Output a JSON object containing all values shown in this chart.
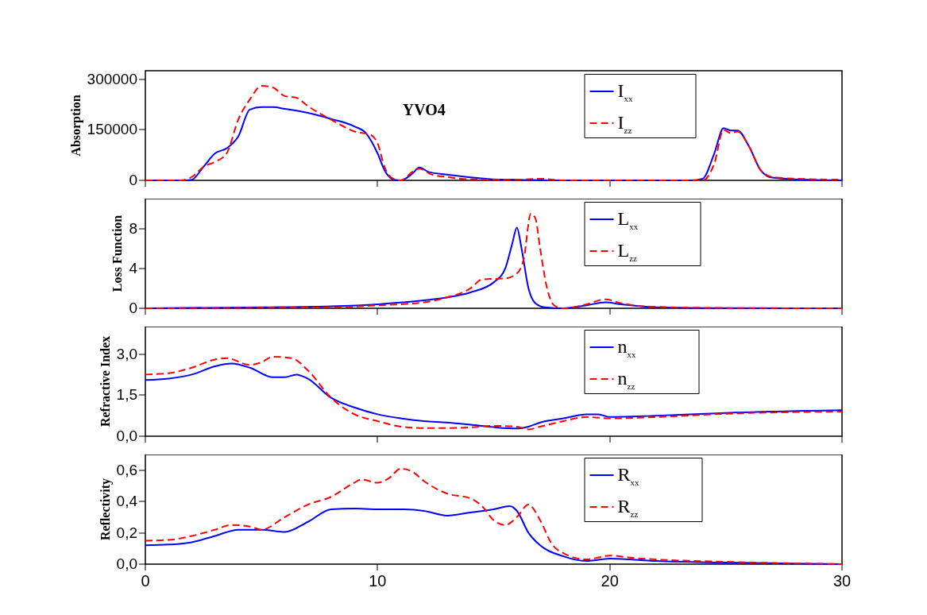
{
  "chart_data": [
    {
      "type": "line",
      "ylabel": "Absorption",
      "annotations": [
        "YVO4"
      ],
      "xlim": [
        0,
        30
      ],
      "xticks": [
        0,
        10,
        20,
        30
      ],
      "ylim": [
        0,
        325000
      ],
      "yticks": [
        0,
        150000,
        300000
      ],
      "tick_labels": "y",
      "legend": "top right",
      "x": [
        0,
        1.7,
        2,
        2.5,
        3,
        3.5,
        4,
        4.5,
        5,
        5.5,
        6,
        7,
        8,
        9,
        9.5,
        10,
        10.3,
        10.7,
        11,
        11.5,
        11.8,
        12.2,
        13,
        14,
        15,
        16,
        18,
        23.5,
        24,
        24.5,
        24.9,
        25.2,
        25.5,
        26,
        26.5,
        27,
        28,
        30
      ],
      "series": [
        {
          "name": "I$_{xx}$",
          "color": "#0000ff",
          "line_style": "solid",
          "values": [
            0,
            0,
            2000,
            40000,
            80000,
            95000,
            130000,
            210000,
            217000,
            217000,
            212000,
            200000,
            182000,
            160000,
            140000,
            80000,
            30000,
            2000,
            0,
            20000,
            38000,
            25000,
            17000,
            9000,
            3000,
            2000,
            0,
            0,
            5000,
            80000,
            155000,
            148000,
            148000,
            100000,
            30000,
            8000,
            3000,
            0
          ]
        },
        {
          "name": "I$_{zz}$",
          "color": "#ff0000",
          "line_style": "dashed",
          "x": [
            0,
            1.5,
            2,
            2.5,
            3,
            3.5,
            4,
            4.5,
            5,
            5.5,
            6,
            6.5,
            7,
            8,
            9,
            9.7,
            10,
            10.3,
            10.6,
            11,
            11.5,
            11.8,
            12.3,
            13,
            14,
            16,
            17,
            18,
            24,
            24.5,
            24.9,
            25.2,
            25.5,
            26,
            26.5,
            27,
            28,
            30
          ],
          "values": [
            0,
            0,
            10000,
            40000,
            55000,
            80000,
            180000,
            240000,
            280000,
            275000,
            250000,
            245000,
            220000,
            180000,
            145000,
            135000,
            110000,
            40000,
            8000,
            0,
            25000,
            35000,
            18000,
            10000,
            3000,
            2000,
            5000,
            0,
            0,
            50000,
            150000,
            140000,
            145000,
            100000,
            30000,
            10000,
            5000,
            2000
          ]
        }
      ]
    },
    {
      "type": "line",
      "ylabel": "Loss Function",
      "xlim": [
        0,
        30
      ],
      "xticks": [
        0,
        10,
        20,
        30
      ],
      "ylim": [
        0,
        11
      ],
      "yticks": [
        0,
        4,
        8
      ],
      "tick_labels": "y",
      "legend": "top right",
      "series": [
        {
          "name": "L$_{xx}$",
          "color": "#0000ff",
          "line_style": "solid",
          "x": [
            0,
            5,
            8,
            10,
            12,
            13,
            14,
            15,
            15.5,
            15.8,
            16,
            16.2,
            16.5,
            16.8,
            17.2,
            18,
            19,
            19.8,
            20.5,
            22,
            25,
            30
          ],
          "values": [
            0,
            0.1,
            0.2,
            0.4,
            0.8,
            1.1,
            1.6,
            2.6,
            4,
            6.5,
            8.1,
            6,
            2,
            0.5,
            0.1,
            0,
            0.3,
            0.6,
            0.4,
            0.1,
            0.02,
            0
          ]
        },
        {
          "name": "L$_{zz}$",
          "color": "#ff0000",
          "line_style": "dashed",
          "x": [
            0,
            5,
            8,
            10,
            12,
            13,
            14,
            14.5,
            15.5,
            16,
            16.3,
            16.6,
            16.8,
            17,
            17.3,
            17.6,
            18,
            19,
            19.8,
            20.5,
            22,
            25,
            30
          ],
          "values": [
            0,
            0.05,
            0.1,
            0.3,
            0.6,
            1.1,
            2,
            2.9,
            3,
            3.5,
            5,
            9.5,
            9,
            6,
            2,
            0.3,
            0,
            0.4,
            0.9,
            0.5,
            0.15,
            0.03,
            0
          ]
        }
      ]
    },
    {
      "type": "line",
      "ylabel": "Refractive Index",
      "xlim": [
        0,
        30
      ],
      "xticks": [
        0,
        10,
        20,
        30
      ],
      "ylim": [
        0,
        4
      ],
      "yticks": [
        {
          "value": 0,
          "label": "0,0"
        },
        {
          "value": 1.5,
          "label": "1,5"
        },
        {
          "value": 3,
          "label": "3,0"
        }
      ],
      "tick_labels": "y",
      "legend": "top right",
      "series": [
        {
          "name": "n$_{xx}$",
          "color": "#0000ff",
          "line_style": "solid",
          "x": [
            0,
            1,
            2,
            3,
            3.7,
            4.5,
            5.5,
            6,
            6.5,
            7,
            8,
            9,
            10,
            11,
            12,
            13,
            14,
            15,
            16,
            16.5,
            17,
            18,
            19,
            19.5,
            20,
            22,
            25,
            30
          ],
          "values": [
            2.05,
            2.1,
            2.25,
            2.55,
            2.65,
            2.5,
            2.15,
            2.15,
            2.25,
            2.1,
            1.4,
            1.05,
            0.8,
            0.65,
            0.55,
            0.5,
            0.42,
            0.33,
            0.28,
            0.35,
            0.5,
            0.65,
            0.8,
            0.8,
            0.7,
            0.75,
            0.85,
            0.95
          ]
        },
        {
          "name": "n$_{zz}$",
          "color": "#ff0000",
          "line_style": "dashed",
          "x": [
            0,
            1,
            2,
            3,
            3.5,
            4.5,
            5,
            5.5,
            6.3,
            7,
            8,
            9,
            10,
            11,
            12,
            13,
            14,
            15,
            16,
            16.5,
            17,
            18,
            19,
            20,
            22,
            25,
            30
          ],
          "values": [
            2.25,
            2.3,
            2.5,
            2.8,
            2.85,
            2.6,
            2.7,
            2.9,
            2.85,
            2.4,
            1.4,
            0.8,
            0.55,
            0.35,
            0.3,
            0.3,
            0.32,
            0.38,
            0.35,
            0.25,
            0.35,
            0.55,
            0.7,
            0.65,
            0.7,
            0.82,
            0.9
          ]
        }
      ]
    },
    {
      "type": "line",
      "ylabel": "Reflectivity",
      "xlim": [
        0,
        30
      ],
      "xticks": [
        0,
        10,
        20,
        30
      ],
      "ylim": [
        0,
        0.7
      ],
      "yticks": [
        {
          "value": 0,
          "label": "0,0"
        },
        {
          "value": 0.2,
          "label": "0,2"
        },
        {
          "value": 0.4,
          "label": "0,4"
        },
        {
          "value": 0.6,
          "label": "0,6"
        }
      ],
      "legend": "top right",
      "series": [
        {
          "name": "R$_{xx}$",
          "color": "#0000ff",
          "line_style": "solid",
          "x": [
            0,
            1,
            2,
            3,
            4,
            5,
            6,
            7,
            8,
            9,
            10,
            11,
            12,
            13,
            14,
            15,
            15.7,
            16,
            16.5,
            17,
            18,
            19,
            20,
            22,
            25,
            30
          ],
          "values": [
            0.12,
            0.125,
            0.14,
            0.18,
            0.22,
            0.22,
            0.205,
            0.27,
            0.35,
            0.355,
            0.35,
            0.35,
            0.34,
            0.31,
            0.33,
            0.35,
            0.37,
            0.34,
            0.2,
            0.12,
            0.05,
            0.02,
            0.035,
            0.02,
            0.01,
            0
          ]
        },
        {
          "name": "R$_{zz}$",
          "color": "#ff0000",
          "line_style": "dashed",
          "x": [
            0,
            1,
            2,
            3,
            3.7,
            4.5,
            5,
            6,
            7,
            8,
            9,
            9.3,
            10,
            10.5,
            11,
            11.5,
            12,
            13,
            14,
            14.5,
            15,
            15.5,
            16,
            16.5,
            17,
            17.5,
            18,
            19,
            20,
            21,
            22,
            25,
            30
          ],
          "values": [
            0.15,
            0.155,
            0.18,
            0.22,
            0.25,
            0.24,
            0.22,
            0.3,
            0.38,
            0.43,
            0.52,
            0.54,
            0.52,
            0.55,
            0.61,
            0.59,
            0.53,
            0.45,
            0.42,
            0.37,
            0.28,
            0.25,
            0.3,
            0.38,
            0.28,
            0.13,
            0.07,
            0.03,
            0.055,
            0.04,
            0.03,
            0.015,
            0
          ]
        }
      ]
    }
  ]
}
